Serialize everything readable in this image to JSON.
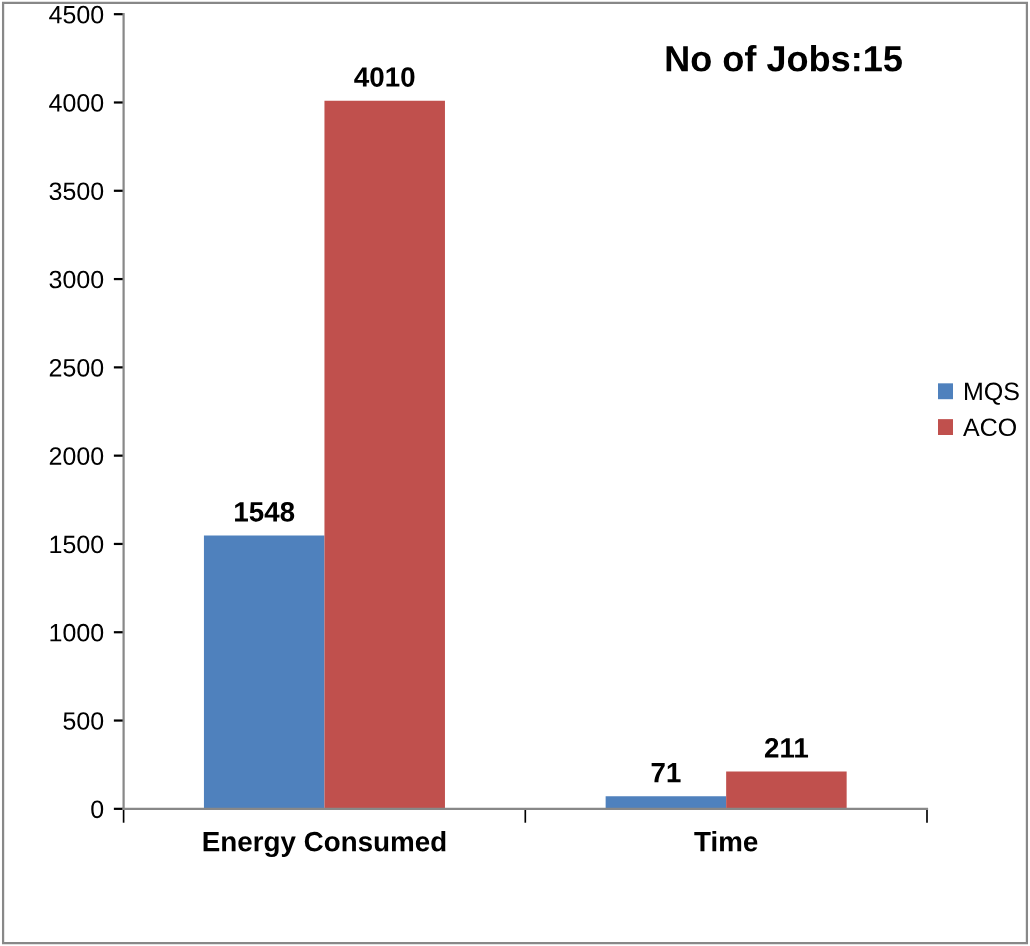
{
  "chart_data": {
    "type": "bar",
    "title": "No of Jobs:15",
    "categories": [
      "Energy Consumed",
      "Time"
    ],
    "series": [
      {
        "name": "MQS",
        "color": "#4f81bd",
        "values": [
          1548,
          71
        ]
      },
      {
        "name": "ACO",
        "color": "#c0504d",
        "values": [
          4010,
          211
        ]
      }
    ],
    "ylim": [
      0,
      4500
    ],
    "yticks": [
      0,
      500,
      1000,
      1500,
      2000,
      2500,
      3000,
      3500,
      4000,
      4500
    ],
    "grid": false,
    "legend": "right",
    "data_labels": true
  }
}
